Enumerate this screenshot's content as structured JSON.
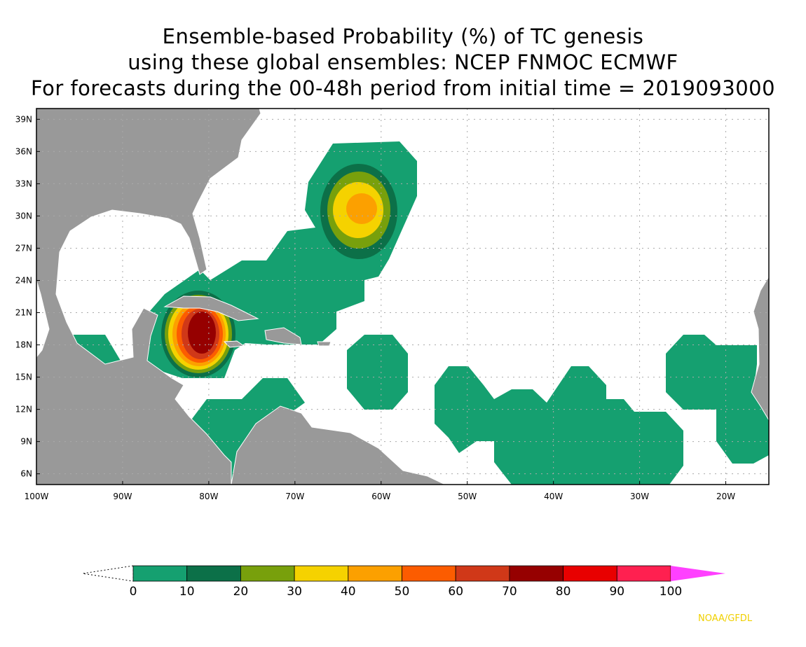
{
  "title": {
    "line1": "Ensemble-based Probability (%) of TC genesis",
    "line2": "using these global ensembles:   NCEP FNMOC ECMWF",
    "line3": "For forecasts during the 00-48h period from initial time = 2019093000"
  },
  "map": {
    "lon_range": [
      -100,
      -15
    ],
    "lat_range": [
      5,
      40
    ],
    "lat_ticks": [
      {
        "value": 39,
        "label": "39N"
      },
      {
        "value": 36,
        "label": "36N"
      },
      {
        "value": 33,
        "label": "33N"
      },
      {
        "value": 30,
        "label": "30N"
      },
      {
        "value": 27,
        "label": "27N"
      },
      {
        "value": 24,
        "label": "24N"
      },
      {
        "value": 21,
        "label": "21N"
      },
      {
        "value": 18,
        "label": "18N"
      },
      {
        "value": 15,
        "label": "15N"
      },
      {
        "value": 12,
        "label": "12N"
      },
      {
        "value": 9,
        "label": "9N"
      },
      {
        "value": 6,
        "label": "6N"
      }
    ],
    "lon_ticks": [
      {
        "value": -100,
        "label": "100W"
      },
      {
        "value": -90,
        "label": "90W"
      },
      {
        "value": -80,
        "label": "80W"
      },
      {
        "value": -70,
        "label": "70W"
      },
      {
        "value": -60,
        "label": "60W"
      },
      {
        "value": -50,
        "label": "50W"
      },
      {
        "value": -40,
        "label": "40W"
      },
      {
        "value": -30,
        "label": "30W"
      },
      {
        "value": -20,
        "label": "20W"
      }
    ],
    "land_color": "#999999",
    "genesis_areas": [
      {
        "name": "western-caribbean",
        "center_lon": -81.5,
        "center_lat": 19,
        "max_category": "70-80"
      },
      {
        "name": "central-atlantic-north",
        "center_lon": -62.5,
        "center_lat": 31,
        "max_category": "40-50"
      }
    ]
  },
  "colorbar": {
    "labels": [
      "0",
      "10",
      "20",
      "30",
      "40",
      "50",
      "60",
      "70",
      "80",
      "90",
      "100"
    ],
    "colors": [
      "#15a070",
      "#0c7048",
      "#78a00c",
      "#f5d200",
      "#fca000",
      "#fc5c00",
      "#d03818",
      "#960000",
      "#e80000",
      "#ff2050"
    ],
    "over_color": "#ff40ff"
  },
  "credit": "NOAA/GFDL"
}
